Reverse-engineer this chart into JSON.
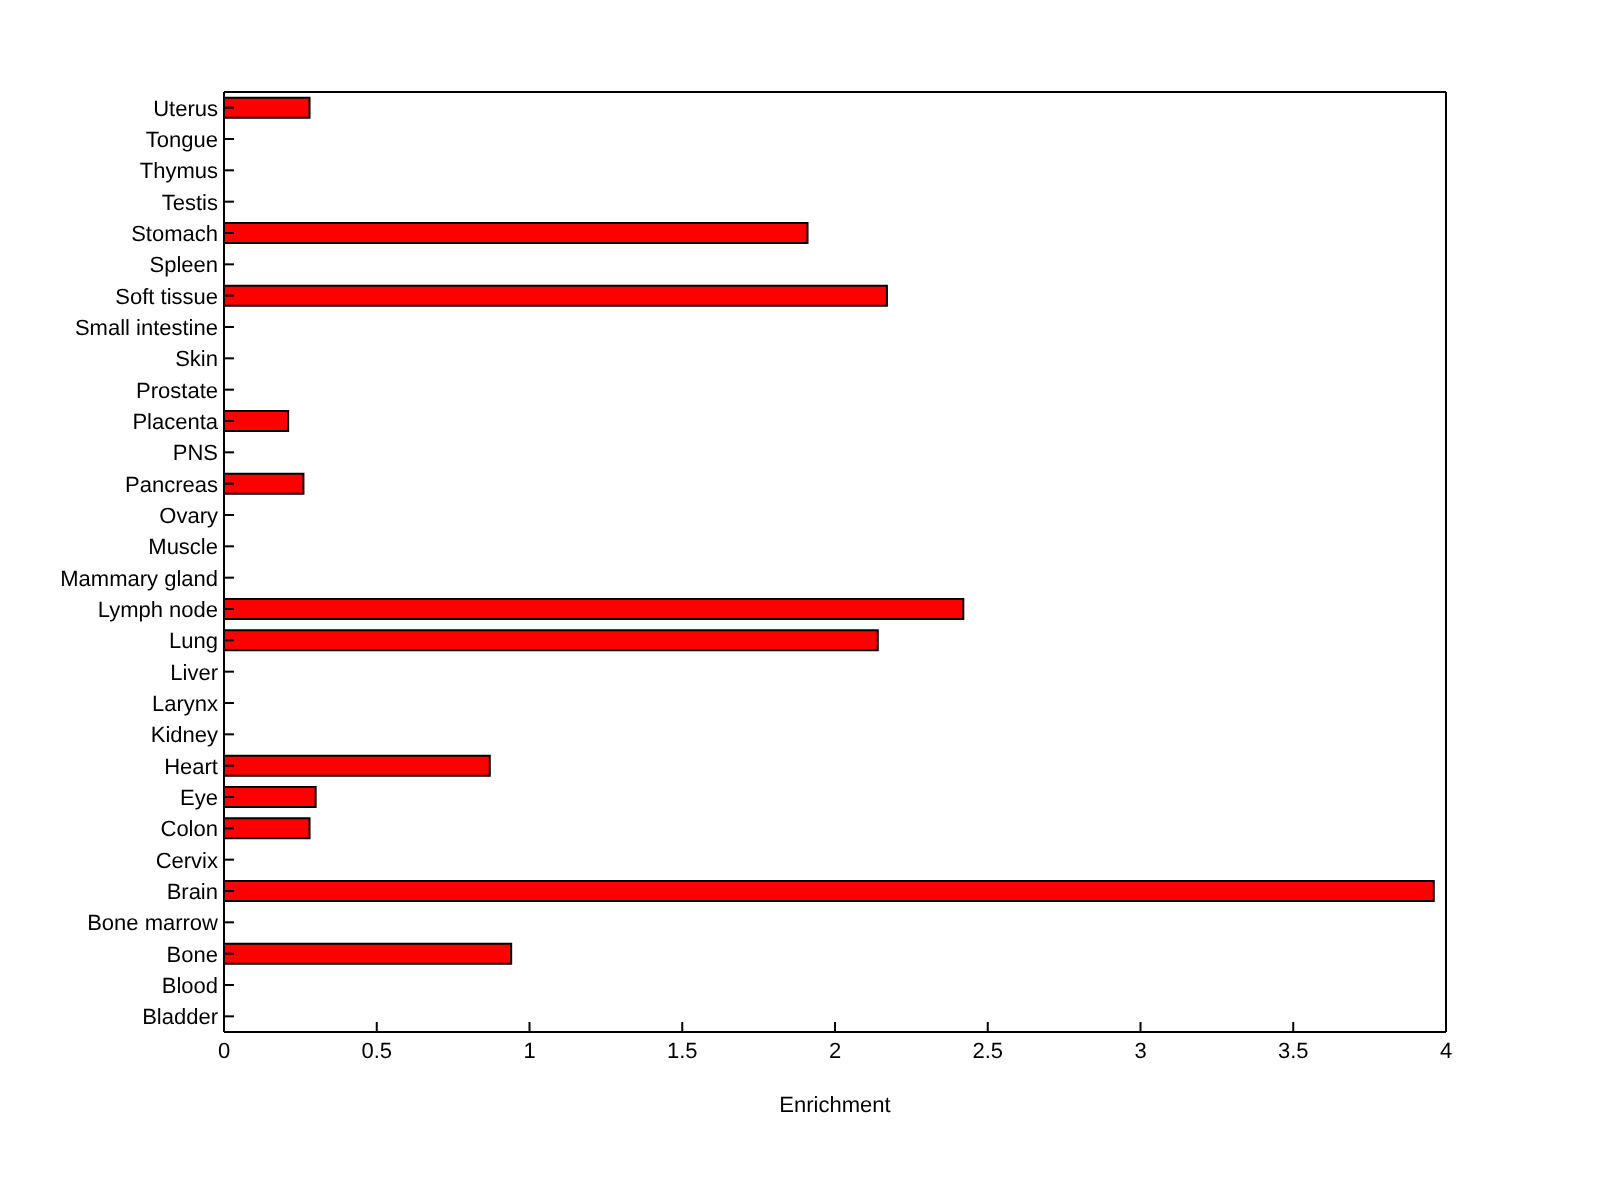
{
  "chart_data": {
    "type": "bar",
    "orientation": "horizontal",
    "xlabel": "Enrichment",
    "categories": [
      "Uterus",
      "Tongue",
      "Thymus",
      "Testis",
      "Stomach",
      "Spleen",
      "Soft tissue",
      "Small intestine",
      "Skin",
      "Prostate",
      "Placenta",
      "PNS",
      "Pancreas",
      "Ovary",
      "Muscle",
      "Mammary gland",
      "Lymph node",
      "Lung",
      "Liver",
      "Larynx",
      "Kidney",
      "Heart",
      "Eye",
      "Colon",
      "Cervix",
      "Brain",
      "Bone marrow",
      "Bone",
      "Blood",
      "Bladder"
    ],
    "values": [
      0.28,
      0,
      0,
      0,
      1.91,
      0,
      2.17,
      0,
      0,
      0,
      0.21,
      0,
      0.26,
      0,
      0,
      0,
      2.42,
      2.14,
      0,
      0,
      0,
      0.87,
      0.3,
      0.28,
      0,
      3.96,
      0,
      0.94,
      0,
      0
    ],
    "color": "#ff0000",
    "xlim": [
      0,
      4
    ],
    "xticks": [
      0,
      0.5,
      1,
      1.5,
      2,
      2.5,
      3,
      3.5,
      4
    ],
    "grid": false,
    "legend": false
  }
}
